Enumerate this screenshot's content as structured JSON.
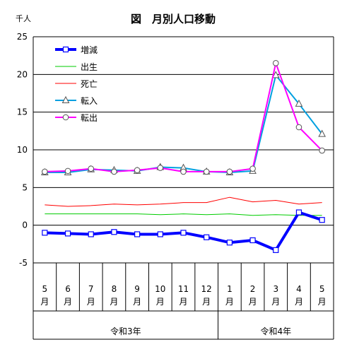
{
  "chart_data": {
    "type": "line",
    "title": "図　月別人口移動",
    "yunit": "千人",
    "ylim": [
      -5,
      25
    ],
    "yticks": [
      25,
      20,
      15,
      10,
      5,
      0,
      -5
    ],
    "grid": true,
    "legend_position": "top-left",
    "categories": [
      {
        "num": "5",
        "suffix": "月"
      },
      {
        "num": "6",
        "suffix": "月"
      },
      {
        "num": "7",
        "suffix": "月"
      },
      {
        "num": "8",
        "suffix": "月"
      },
      {
        "num": "9",
        "suffix": "月"
      },
      {
        "num": "10",
        "suffix": "月"
      },
      {
        "num": "11",
        "suffix": "月"
      },
      {
        "num": "12",
        "suffix": "月"
      },
      {
        "num": "1",
        "suffix": "月"
      },
      {
        "num": "2",
        "suffix": "月"
      },
      {
        "num": "3",
        "suffix": "月"
      },
      {
        "num": "4",
        "suffix": "月"
      },
      {
        "num": "5",
        "suffix": "月"
      }
    ],
    "eras": [
      {
        "label": "令和3年",
        "from": 0,
        "to": 7
      },
      {
        "label": "令和4年",
        "from": 8,
        "to": 12
      }
    ],
    "series": [
      {
        "name": "増減",
        "color": "#0000ff",
        "marker": "square",
        "values": [
          -1.0,
          -1.1,
          -1.2,
          -0.9,
          -1.2,
          -1.2,
          -1.0,
          -1.6,
          -2.3,
          -2.0,
          -3.3,
          1.7,
          0.7
        ]
      },
      {
        "name": "出生",
        "color": "#00cc00",
        "marker": "none",
        "values": [
          1.5,
          1.5,
          1.5,
          1.5,
          1.5,
          1.4,
          1.5,
          1.4,
          1.5,
          1.3,
          1.4,
          1.3,
          1.3
        ]
      },
      {
        "name": "死亡",
        "color": "#ff0000",
        "marker": "none",
        "values": [
          2.7,
          2.5,
          2.6,
          2.8,
          2.7,
          2.8,
          3.0,
          3.0,
          3.7,
          3.1,
          3.3,
          2.8,
          3.0
        ]
      },
      {
        "name": "転入",
        "color": "#00a0e0",
        "marker": "triangle",
        "values": [
          7.0,
          7.0,
          7.4,
          7.3,
          7.2,
          7.7,
          7.6,
          7.1,
          7.0,
          7.2,
          19.9,
          16.1,
          12.1
        ]
      },
      {
        "name": "転出",
        "color": "#ff00ff",
        "marker": "circle",
        "values": [
          7.1,
          7.2,
          7.5,
          7.1,
          7.3,
          7.6,
          7.1,
          7.1,
          7.1,
          7.5,
          21.5,
          13.0,
          9.9
        ]
      }
    ]
  }
}
